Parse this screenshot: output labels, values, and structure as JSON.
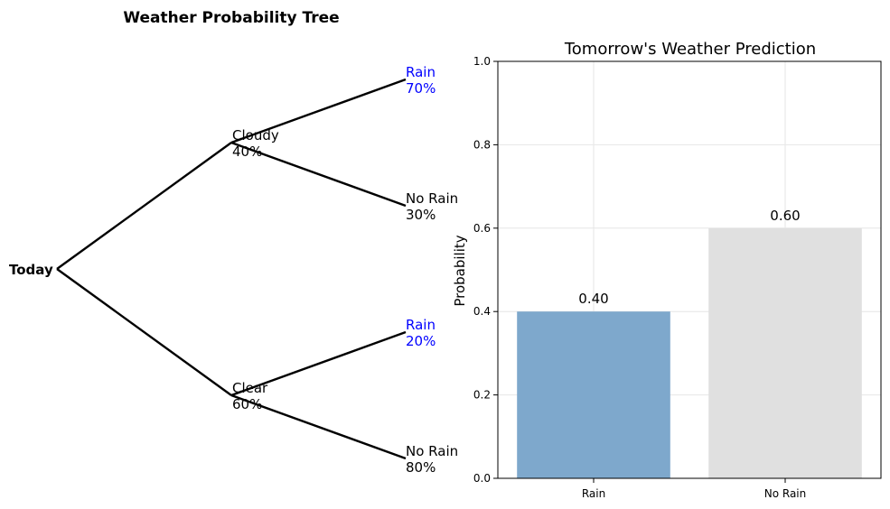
{
  "tree": {
    "title": "Weather Probability Tree",
    "root": "Today",
    "branches": [
      {
        "label": "Cloudy",
        "prob": "40%",
        "children": [
          {
            "label": "Rain",
            "prob": "70%",
            "highlight": true
          },
          {
            "label": "No Rain",
            "prob": "30%",
            "highlight": false
          }
        ]
      },
      {
        "label": "Clear",
        "prob": "60%",
        "children": [
          {
            "label": "Rain",
            "prob": "20%",
            "highlight": true
          },
          {
            "label": "No Rain",
            "prob": "80%",
            "highlight": false
          }
        ]
      }
    ],
    "colors": {
      "line": "#000000",
      "text": "#000000",
      "highlight": "#0000ff"
    }
  },
  "chart_data": {
    "type": "bar",
    "title": "Tomorrow's Weather Prediction",
    "xlabel": "",
    "ylabel": "Probability",
    "categories": [
      "Rain",
      "No Rain"
    ],
    "values": [
      0.4,
      0.6
    ],
    "data_labels": [
      "0.40",
      "0.60"
    ],
    "ylim": [
      0,
      1.0
    ],
    "yticks": [
      0.0,
      0.2,
      0.4,
      0.6,
      0.8,
      1.0
    ],
    "ytick_labels": [
      "0.0",
      "0.2",
      "0.4",
      "0.6",
      "0.8",
      "1.0"
    ],
    "grid": true,
    "colors": [
      "#7ea8cc",
      "#e0e0e0"
    ]
  }
}
